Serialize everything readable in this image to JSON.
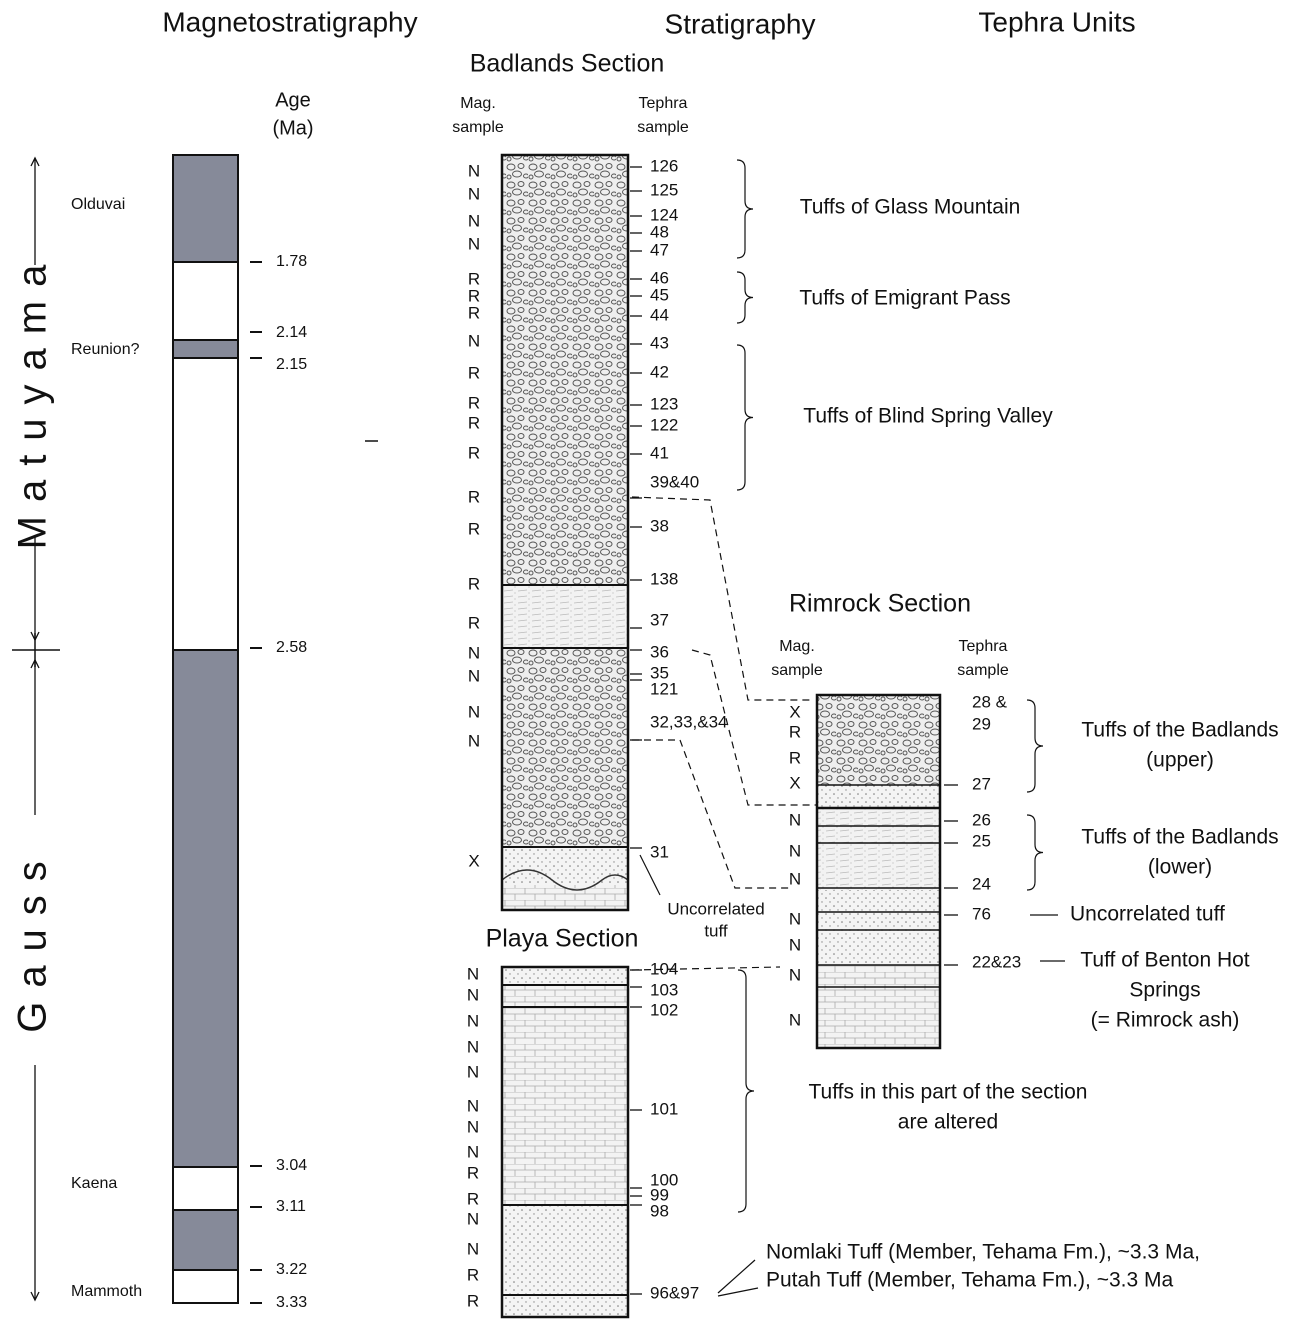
{
  "headers": {
    "magnetostratigraphy": "Magnetostratigraphy",
    "stratigraphy": "Stratigraphy",
    "tephra_units": "Tephra Units"
  },
  "magnetostratigraphy": {
    "age_label": [
      "Age",
      "(Ma)"
    ],
    "chrons": [
      "Matuyama",
      "Gauss"
    ],
    "subchrons": [
      "Olduvai",
      "Reunion?",
      "Kaena",
      "Mammoth"
    ],
    "ages": [
      "1.78",
      "2.14",
      "2.15",
      "2.58",
      "3.04",
      "3.11",
      "3.22",
      "3.33"
    ]
  },
  "sections": [
    {
      "title": "Badlands Section",
      "mag_header": [
        "Mag.",
        "sample"
      ],
      "tephra_header": [
        "Tephra",
        "sample"
      ],
      "mag_samples": [
        "N",
        "N",
        "N",
        "N",
        "R",
        "R",
        "R",
        "N",
        "R",
        "R",
        "R",
        "R",
        "R",
        "R",
        "R",
        "R",
        "N",
        "N",
        "N",
        "N",
        "X"
      ],
      "tephra_samples": [
        "126",
        "125",
        "124",
        "48",
        "47",
        "46",
        "45",
        "44",
        "43",
        "42",
        "123",
        "122",
        "41",
        "39&40",
        "38",
        "138",
        "37",
        "36",
        "35",
        "121",
        "32,33,&34",
        "31"
      ],
      "note": [
        "Uncorrelated",
        "tuff"
      ]
    },
    {
      "title": "Rimrock Section",
      "mag_header": [
        "Mag.",
        "sample"
      ],
      "tephra_header": [
        "Tephra",
        "sample"
      ],
      "mag_samples": [
        "X",
        "R",
        "R",
        "X",
        "N",
        "N",
        "N",
        "N",
        "N",
        "N",
        "N"
      ],
      "tephra_samples": [
        "28 &",
        "29",
        "27",
        "26",
        "25",
        "24",
        "76",
        "22&23"
      ]
    },
    {
      "title": "Playa Section",
      "mag_samples": [
        "N",
        "N",
        "N",
        "N",
        "N",
        "N",
        "N",
        "N",
        "R",
        "R",
        "N",
        "N",
        "R",
        "R"
      ],
      "tephra_samples": [
        "104",
        "103",
        "102",
        "101",
        "100",
        "99",
        "98",
        "96&97"
      ]
    }
  ],
  "tephra_units": [
    {
      "lines": [
        "Tuffs of Glass Mountain"
      ]
    },
    {
      "lines": [
        "Tuffs of Emigrant Pass"
      ]
    },
    {
      "lines": [
        "Tuffs of Blind Spring Valley"
      ]
    },
    {
      "lines": [
        "Tuffs of the Badlands",
        "(upper)"
      ]
    },
    {
      "lines": [
        "Tuffs of the Badlands",
        "(lower)"
      ]
    },
    {
      "lines": [
        "Uncorrelated tuff"
      ]
    },
    {
      "lines": [
        "Tuff of Benton Hot",
        "Springs",
        "(= Rimrock ash)"
      ]
    },
    {
      "lines": [
        "Tuffs in this part of the section",
        "are altered"
      ]
    },
    {
      "lines": [
        "Nomlaki Tuff (Member, Tehama Fm.),  ~3.3 Ma,",
        "Putah Tuff (Member, Tehama Fm.), ~3.3 Ma"
      ]
    }
  ]
}
